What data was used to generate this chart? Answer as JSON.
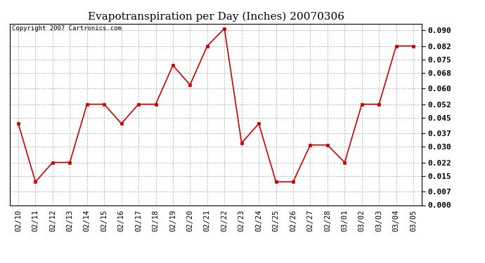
{
  "title": "Evapotranspiration per Day (Inches) 20070306",
  "copyright": "Copyright 2007 Cartronics.com",
  "x_labels": [
    "02/10",
    "02/11",
    "02/12",
    "02/13",
    "02/14",
    "02/15",
    "02/16",
    "02/17",
    "02/18",
    "02/19",
    "02/20",
    "02/21",
    "02/22",
    "02/23",
    "02/24",
    "02/25",
    "02/26",
    "02/27",
    "02/28",
    "03/01",
    "03/02",
    "03/03",
    "03/04",
    "03/05"
  ],
  "y_values": [
    0.042,
    0.012,
    0.022,
    0.022,
    0.052,
    0.052,
    0.042,
    0.052,
    0.052,
    0.072,
    0.062,
    0.082,
    0.091,
    0.032,
    0.042,
    0.012,
    0.012,
    0.031,
    0.031,
    0.022,
    0.052,
    0.052,
    0.082,
    0.082
  ],
  "line_color": "#cc0000",
  "marker_color": "#cc0000",
  "marker": "s",
  "marker_size": 2.5,
  "line_width": 1.2,
  "y_min": 0.0,
  "y_max": 0.0935,
  "y_ticks": [
    0.0,
    0.007,
    0.015,
    0.022,
    0.03,
    0.037,
    0.045,
    0.052,
    0.06,
    0.068,
    0.075,
    0.082,
    0.09
  ],
  "grid_color": "#bbbbbb",
  "bg_color": "#ffffff",
  "title_fontsize": 11,
  "copyright_fontsize": 6.5,
  "tick_fontsize": 7.5,
  "ytick_fontsize": 8
}
